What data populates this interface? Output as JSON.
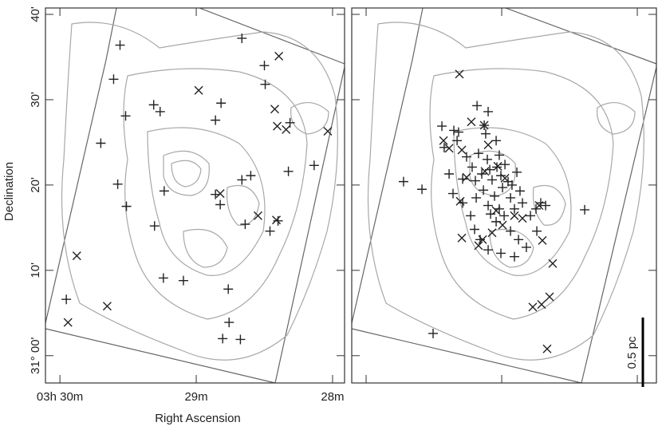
{
  "chart_data": [
    {
      "type": "scatter",
      "xlabel": "Right Ascension",
      "ylabel": "Declination",
      "xlim": [
        30.106,
        27.912
      ],
      "ylim": [
        -3.2,
        40.75
      ],
      "xticks": [
        {
          "value": 30,
          "label": "03h 30m"
        },
        {
          "value": 29,
          "label": "29m"
        },
        {
          "value": 28,
          "label": "28m"
        }
      ],
      "yticks": [
        {
          "value": 40,
          "label": "40'"
        },
        {
          "value": 30,
          "label": "30'"
        },
        {
          "value": 20,
          "label": "20'"
        },
        {
          "value": 10,
          "label": "10'"
        },
        {
          "value": 0,
          "label": "31° 00'"
        }
      ],
      "grid": false,
      "series": [
        {
          "marker": "+",
          "color": "#222222",
          "x": [
            29.559,
            29.606,
            29.518,
            29.7,
            29.576,
            29.512,
            29.312,
            29.265,
            29.306,
            29.235,
            29.241,
            29.094,
            28.859,
            28.818,
            28.859,
            28.824,
            28.665,
            28.6,
            28.641,
            28.765,
            28.665,
            28.5,
            28.494,
            28.312,
            28.324,
            28.135,
            28.459,
            28.4,
            28.806,
            28.676,
            28.759,
            29.953
          ],
          "values": [
            36.4,
            32.4,
            28.1,
            24.9,
            20.1,
            17.5,
            29.4,
            28.6,
            15.2,
            19.3,
            9.1,
            8.8,
            27.6,
            29.6,
            18.9,
            17.7,
            20.6,
            21.1,
            15.4,
            7.8,
            37.2,
            34.0,
            31.8,
            27.3,
            21.6,
            22.3,
            14.6,
            15.8,
            2.0,
            1.9,
            3.9,
            6.6
          ]
        },
        {
          "marker": "x",
          "color": "#222222",
          "x": [
            29.876,
            29.941,
            29.653,
            28.982,
            28.824,
            28.547,
            28.412,
            28.424,
            28.406,
            28.341,
            28.394,
            28.035
          ],
          "values": [
            11.7,
            3.9,
            5.8,
            31.1,
            19.0,
            16.4,
            15.9,
            28.9,
            26.9,
            26.5,
            35.1,
            26.3
          ]
        }
      ]
    },
    {
      "type": "scatter",
      "xlim": [
        30.106,
        27.859
      ],
      "ylim": [
        -3.2,
        40.75
      ],
      "annotation": "0.5 pc",
      "series": [
        {
          "marker": "+",
          "color": "#222222",
          "x": [
            29.724,
            29.588,
            29.506,
            29.441,
            29.424,
            29.353,
            29.329,
            29.318,
            29.182,
            29.1,
            29.129,
            29.118,
            29.041,
            29.388,
            29.359,
            29.288,
            29.259,
            29.218,
            29.194,
            29.171,
            29.147,
            29.135,
            29.106,
            29.088,
            29.071,
            29.053,
            29.035,
            29.018,
            29.006,
            28.994,
            28.976,
            28.953,
            28.935,
            28.906,
            28.888,
            28.865,
            28.847,
            29.288,
            29.229,
            29.188,
            29.082,
            29.041,
            28.982,
            28.935,
            28.876,
            28.788,
            28.747,
            28.712,
            28.676,
            29.159,
            29.1,
            29.006,
            28.906,
            28.818,
            28.741,
            28.388,
            28.924,
            29.2,
            29.1,
            29.018
          ],
          "values": [
            20.4,
            19.5,
            2.6,
            26.9,
            24.4,
            26.4,
            25.2,
            26.2,
            29.3,
            28.6,
            27.0,
            26.0,
            25.2,
            21.3,
            19.0,
            20.7,
            23.3,
            22.1,
            20.5,
            23.7,
            21.3,
            19.4,
            23.0,
            21.8,
            20.6,
            18.7,
            22.1,
            23.5,
            21.1,
            19.7,
            22.4,
            20.4,
            18.5,
            17.2,
            21.5,
            19.3,
            17.9,
            17.9,
            16.4,
            18.5,
            16.6,
            15.7,
            16.4,
            14.6,
            13.6,
            16.4,
            17.2,
            17.9,
            17.6,
            13.6,
            12.4,
            12.0,
            11.6,
            12.7,
            14.6,
            17.1,
            20.0,
            14.8,
            17.6,
            17.2
          ]
        },
        {
          "marker": "x",
          "color": "#222222",
          "x": [
            29.312,
            29.224,
            29.129,
            29.429,
            29.388,
            29.294,
            29.259,
            29.306,
            29.124,
            29.029,
            29.294,
            29.171,
            29.141,
            29.071,
            28.994,
            29.041,
            28.906,
            28.847,
            28.724,
            28.7,
            28.624,
            28.771,
            28.706,
            28.647,
            28.665,
            29.1,
            28.976
          ],
          "values": [
            33.0,
            27.4,
            27.0,
            25.2,
            24.3,
            24.1,
            20.9,
            18.1,
            21.6,
            22.2,
            13.8,
            12.9,
            13.6,
            14.4,
            15.3,
            17.0,
            16.4,
            16.1,
            17.6,
            13.5,
            10.8,
            5.7,
            6.0,
            6.9,
            0.8,
            24.7,
            20.8
          ]
        }
      ]
    }
  ]
}
